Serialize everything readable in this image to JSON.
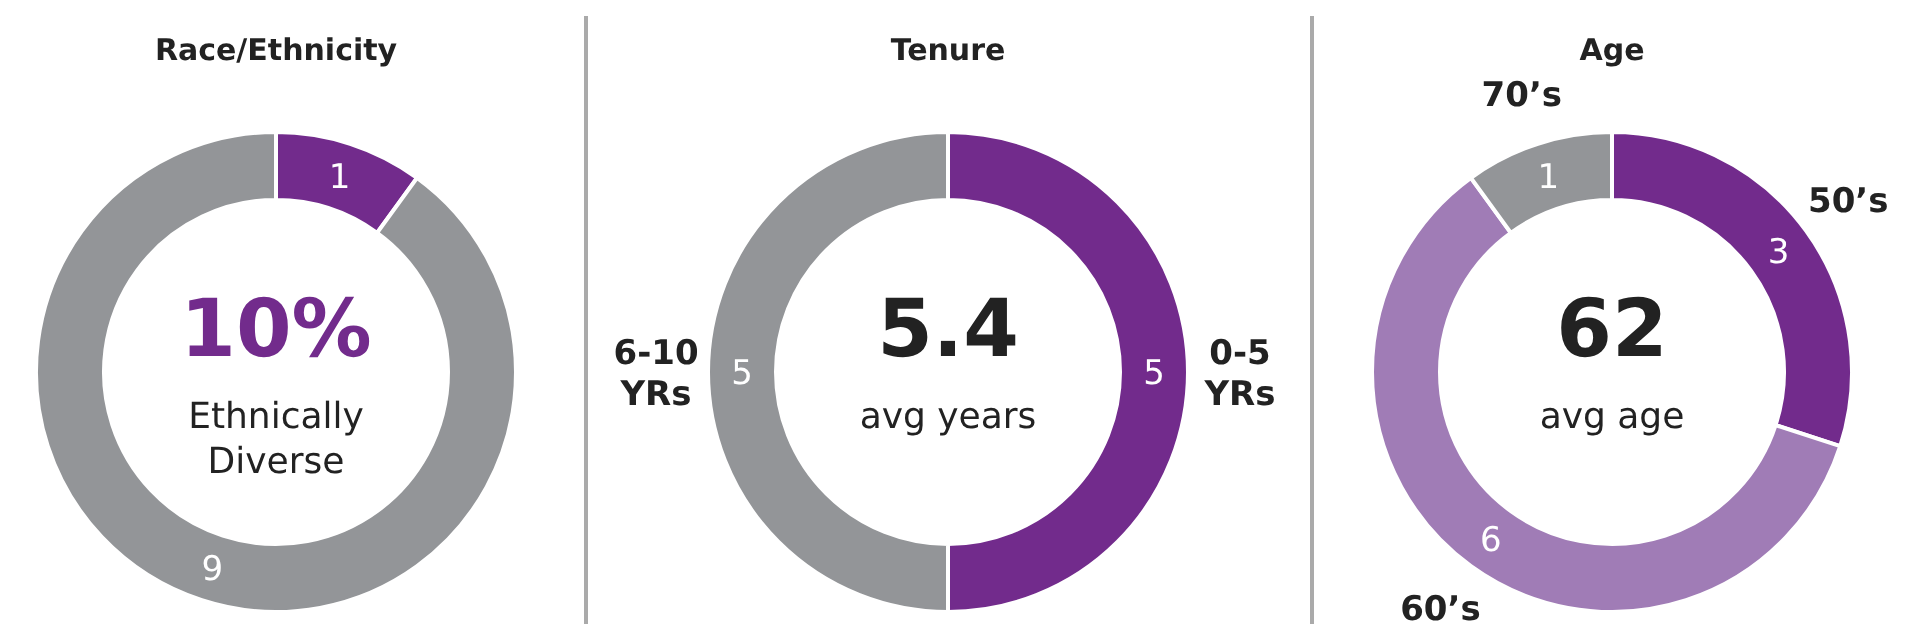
{
  "chart_data": [
    {
      "type": "donut",
      "title": "Race/Ethnicity",
      "categories": [
        null,
        null
      ],
      "values": [
        1,
        9
      ],
      "colors": [
        "#722b8c",
        "#939598"
      ],
      "data_labels": true,
      "annotations": [
        "10%",
        "Ethnically Diverse"
      ]
    },
    {
      "type": "donut",
      "title": "Tenure",
      "categories": [
        "0-5 YRs",
        "6-10 YRs"
      ],
      "values": [
        5,
        5
      ],
      "colors": [
        "#722b8c",
        "#939598"
      ],
      "data_labels": true,
      "annotations": [
        "5.4",
        "avg years"
      ]
    },
    {
      "type": "donut",
      "title": "Age",
      "categories": [
        "50’s",
        "60’s",
        "70’s"
      ],
      "values": [
        3,
        6,
        1
      ],
      "colors": [
        "#722b8c",
        "#a07cb6",
        "#939598"
      ],
      "data_labels": true,
      "annotations": [
        "62",
        "avg age"
      ]
    }
  ]
}
